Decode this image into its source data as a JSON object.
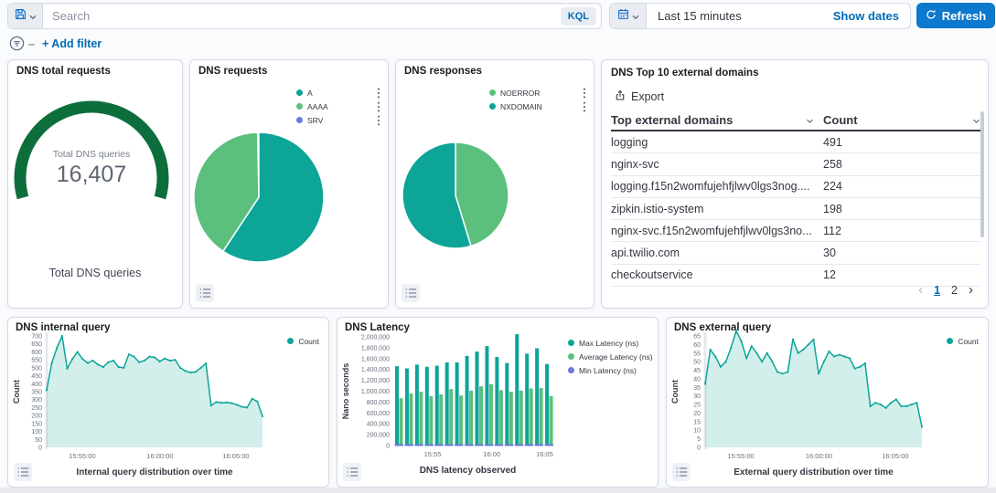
{
  "topbar": {
    "search_placeholder": "Search",
    "kql_label": "KQL",
    "time_value": "Last 15 minutes",
    "show_dates_label": "Show dates",
    "refresh_label": "Refresh"
  },
  "filter_bar": {
    "add_filter_label": "+ Add filter"
  },
  "colors": {
    "teal": "#0ca598",
    "green": "#5bc07e",
    "purple": "#6b7adb",
    "gauge_green": "#0d6e3c",
    "link_blue": "#006bb8",
    "button_blue": "#0c79cc",
    "text": "#343741",
    "muted": "#69707d",
    "border": "#d3dae6"
  },
  "panels": {
    "total": {
      "title": "DNS total requests",
      "center_label": "Total DNS queries",
      "value": "16,407",
      "bottom_label": "Total DNS queries"
    },
    "requests": {
      "title": "DNS requests",
      "legend": [
        {
          "label": "A",
          "color": "#0ca598"
        },
        {
          "label": "AAAA",
          "color": "#5bc07e"
        },
        {
          "label": "SRV",
          "color": "#6b7adb"
        }
      ]
    },
    "responses": {
      "title": "DNS responses",
      "legend": [
        {
          "label": "NOERROR",
          "color": "#5bc07e"
        },
        {
          "label": "NXDOMAIN",
          "color": "#0ca598"
        }
      ]
    },
    "domains": {
      "title": "DNS Top 10 external domains",
      "export_label": "Export",
      "columns": [
        "Top external domains",
        "Count"
      ],
      "rows": [
        [
          "logging",
          "491"
        ],
        [
          "nginx-svc",
          "258"
        ],
        [
          "logging.f15n2womfujehfjlwv0lgs3nog....",
          "224"
        ],
        [
          "zipkin.istio-system",
          "198"
        ],
        [
          "nginx-svc.f15n2womfujehfjlwv0lgs3no...",
          "112"
        ],
        [
          "api.twilio.com",
          "30"
        ],
        [
          "checkoutservice",
          "12"
        ]
      ],
      "pages": [
        "1",
        "2"
      ],
      "active_page": "1"
    },
    "internal": {
      "title": "DNS internal query",
      "legend_label": "Count",
      "ylabel": "Count",
      "xlabel": "Internal query distribution over time"
    },
    "latency": {
      "title": "DNS Latency",
      "ylabel": "Nano seconds",
      "xlabel": "DNS latency observed",
      "legend": [
        {
          "label": "Max Latency (ns)",
          "color": "#0ca598"
        },
        {
          "label": "Average Latency (ns)",
          "color": "#5bc07e"
        },
        {
          "label": "Min Latency (ns)",
          "color": "#6b7adb"
        }
      ]
    },
    "external": {
      "title": "DNS external query",
      "legend_label": "Count",
      "ylabel": "Count",
      "xlabel": "External query distribution over time"
    }
  },
  "chart_data": [
    {
      "id": "dns-total-gauge",
      "type": "gauge",
      "value": 16407,
      "display": "16,407",
      "label": "Total DNS queries",
      "color": "#0d6e3c",
      "start_deg": 164,
      "sweep_deg": 212
    },
    {
      "id": "dns-requests-pie",
      "type": "pie",
      "labels": [
        "A",
        "AAAA",
        "SRV"
      ],
      "values": [
        59.3,
        40.4,
        0.3
      ],
      "colors": [
        "#0ca598",
        "#5bc07e",
        "#6b7adb"
      ]
    },
    {
      "id": "dns-responses-pie",
      "type": "pie",
      "labels": [
        "NOERROR",
        "NXDOMAIN"
      ],
      "values": [
        45.3,
        54.7
      ],
      "colors": [
        "#5bc07e",
        "#0ca598"
      ]
    },
    {
      "id": "dns-internal-area",
      "type": "area",
      "title": "Internal query distribution over time",
      "ylabel": "Count",
      "ylim": [
        0,
        700
      ],
      "yticks": [
        "0",
        "50",
        "100",
        "150",
        "200",
        "250",
        "300",
        "350",
        "400",
        "450",
        "500",
        "550",
        "600",
        "650",
        "700"
      ],
      "xticks": [
        {
          "label": "15:55:00",
          "f": 0.165
        },
        {
          "label": "16:00:00",
          "f": 0.525
        },
        {
          "label": "16:05:00",
          "f": 0.877
        }
      ],
      "color": "#0ca598",
      "values": [
        360,
        530,
        625,
        700,
        495,
        555,
        600,
        555,
        530,
        545,
        520,
        505,
        535,
        545,
        505,
        500,
        585,
        570,
        535,
        545,
        570,
        565,
        540,
        558,
        545,
        550,
        500,
        480,
        470,
        475,
        500,
        528,
        262,
        285,
        280,
        282,
        278,
        268,
        255,
        250,
        305,
        288,
        195
      ]
    },
    {
      "id": "dns-latency-bars",
      "type": "bar",
      "title": "DNS latency observed",
      "ylabel": "Nano seconds",
      "ylim": [
        0,
        2000000
      ],
      "yticks": [
        "0",
        "200,000",
        "400,000",
        "600,000",
        "800,000",
        "1,000,000",
        "1,200,000",
        "1,400,000",
        "1,600,000",
        "1,800,000",
        "2,000,000"
      ],
      "xticks": [
        {
          "label": "15:55",
          "f": 0.24
        },
        {
          "label": "16:00",
          "f": 0.61
        },
        {
          "label": "16:05",
          "f": 0.94
        }
      ],
      "series": [
        {
          "name": "Max Latency (ns)",
          "color": "#0ca598",
          "values": [
            1460000,
            1420000,
            1490000,
            1450000,
            1470000,
            1530000,
            1530000,
            1650000,
            1730000,
            1830000,
            1630000,
            1520000,
            2050000,
            1690000,
            1790000,
            1500000
          ]
        },
        {
          "name": "Average Latency (ns)",
          "color": "#5bc07e",
          "values": [
            870000,
            960000,
            990000,
            910000,
            940000,
            1040000,
            920000,
            1010000,
            1090000,
            1130000,
            1020000,
            990000,
            1010000,
            1050000,
            1060000,
            910000
          ]
        },
        {
          "name": "Min Latency (ns)",
          "color": "#6b7adb",
          "values": [
            20000,
            20000,
            20000,
            20000,
            20000,
            20000,
            20000,
            20000,
            20000,
            20000,
            20000,
            20000,
            20000,
            20000,
            20000,
            20000
          ]
        }
      ]
    },
    {
      "id": "dns-external-area",
      "type": "area",
      "title": "External query distribution over time",
      "ylabel": "Count",
      "ylim": [
        0,
        65
      ],
      "yticks": [
        "0",
        "5",
        "10",
        "15",
        "20",
        "25",
        "30",
        "35",
        "40",
        "45",
        "50",
        "55",
        "60",
        "65"
      ],
      "xticks": [
        {
          "label": "15:55:00",
          "f": 0.165
        },
        {
          "label": "16:00:00",
          "f": 0.525
        },
        {
          "label": "16:05:00",
          "f": 0.877
        }
      ],
      "color": "#0ca598",
      "values": [
        37,
        57,
        53,
        47,
        50,
        58,
        68,
        62,
        52,
        59,
        55,
        50,
        55,
        50,
        44,
        43,
        44,
        63,
        55,
        57,
        60,
        63,
        43,
        50,
        56,
        53,
        54,
        53,
        52,
        46,
        47,
        49,
        24,
        26,
        25,
        23,
        26,
        28,
        24,
        24,
        25,
        26,
        12
      ]
    }
  ]
}
